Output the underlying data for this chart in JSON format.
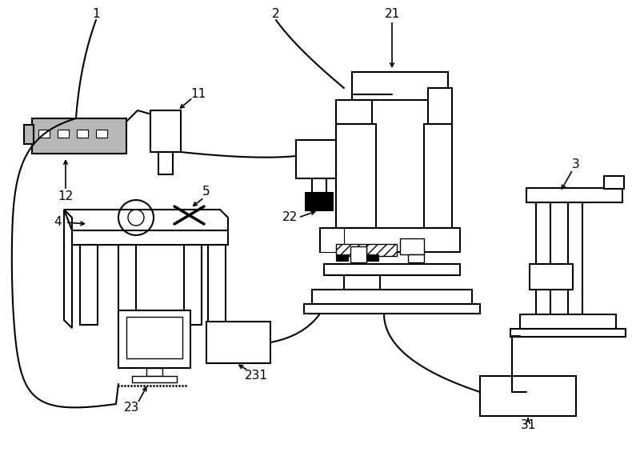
{
  "bg_color": "#ffffff",
  "line_color": "#000000",
  "lw": 1.5
}
